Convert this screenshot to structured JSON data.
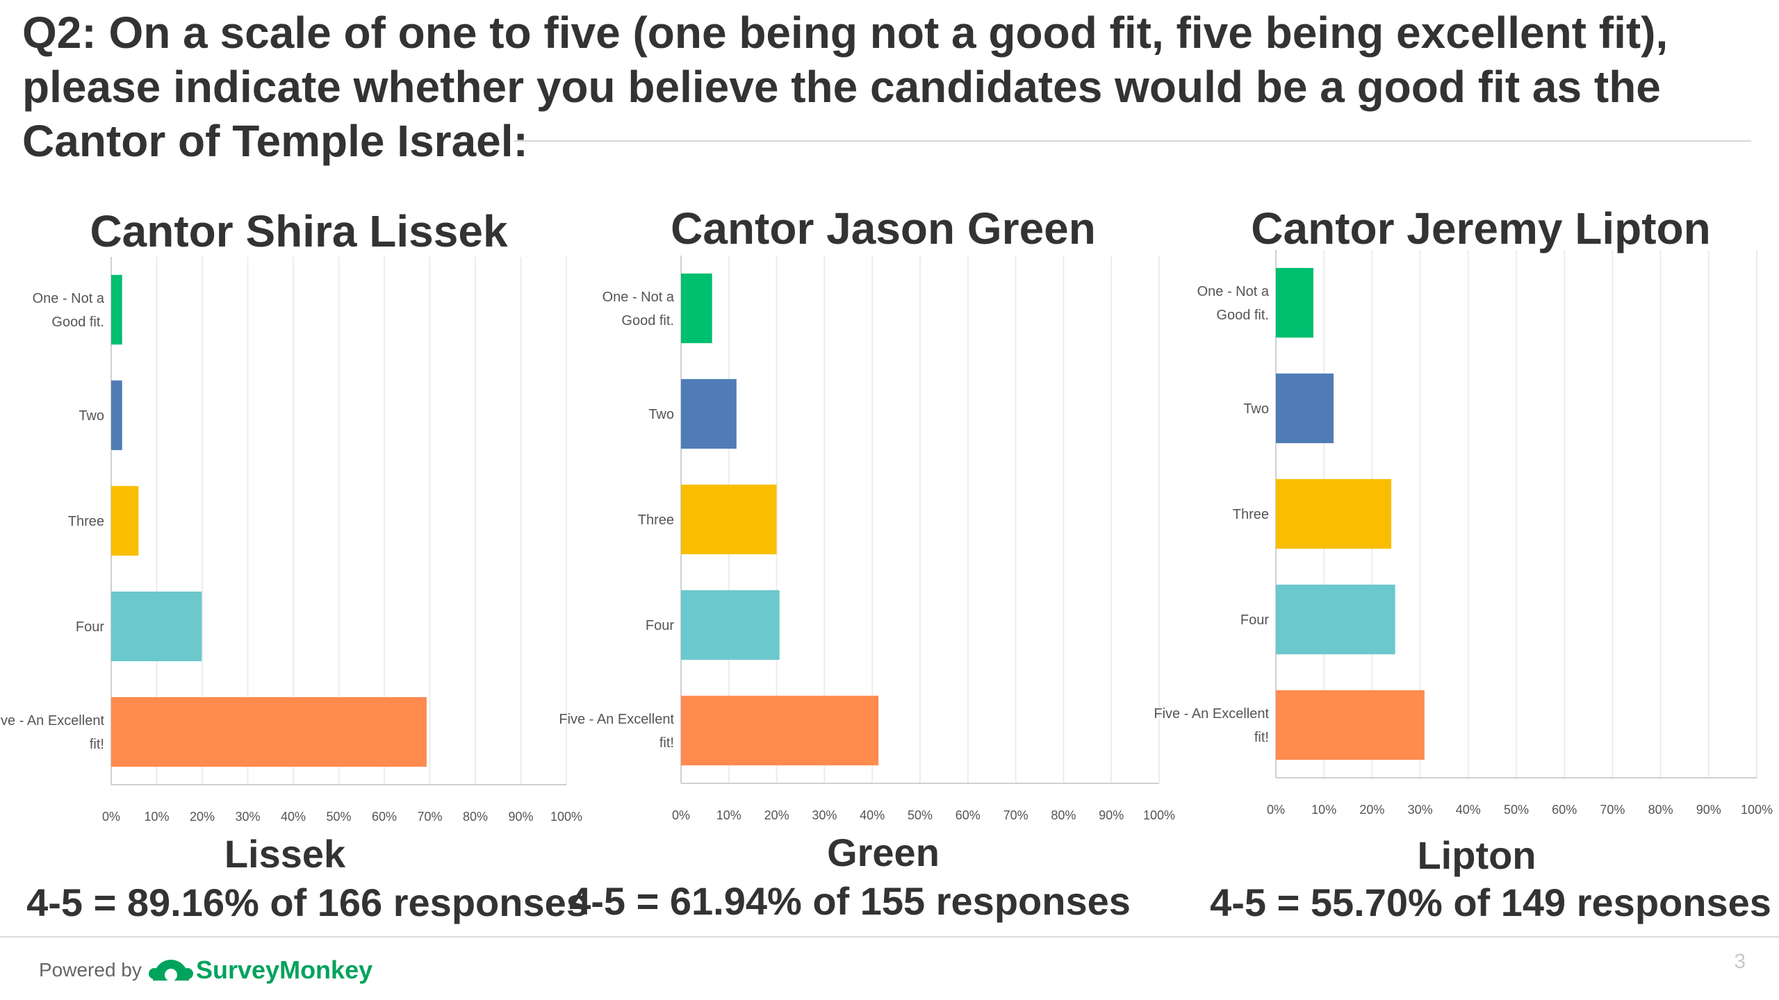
{
  "question": "Q2: On a scale of one to five (one being not a good fit, five being excellent fit), please indicate whether you believe the candidates would be a good fit as the Cantor of Temple Israel:",
  "colors": {
    "one": "#00bf6f",
    "two": "#507cb6",
    "three": "#f9be00",
    "four": "#6bc8cd",
    "five": "#ff8b4f"
  },
  "chart_data": [
    {
      "type": "bar",
      "orientation": "horizontal",
      "title": "Cantor Shira Lissek",
      "categories": [
        "One - Not a Good fit.",
        "Two",
        "Three",
        "Four",
        "Five - An Excellent fit!"
      ],
      "values": [
        2.4,
        2.4,
        6,
        19.9,
        69.3
      ],
      "xticks": [
        "0%",
        "10%",
        "20%",
        "30%",
        "40%",
        "50%",
        "60%",
        "70%",
        "80%",
        "90%",
        "100%"
      ],
      "xlim": [
        0,
        100
      ],
      "grid": true,
      "short_name": "Lissek",
      "summary": "4-5 = 89.16% of 166 responses"
    },
    {
      "type": "bar",
      "orientation": "horizontal",
      "title": "Cantor Jason Green",
      "categories": [
        "One - Not a Good fit.",
        "Two",
        "Three",
        "Four",
        "Five - An Excellent fit!"
      ],
      "values": [
        6.5,
        11.6,
        20,
        20.6,
        41.3
      ],
      "xticks": [
        "0%",
        "10%",
        "20%",
        "30%",
        "40%",
        "50%",
        "60%",
        "70%",
        "80%",
        "90%",
        "100%"
      ],
      "xlim": [
        0,
        100
      ],
      "grid": true,
      "short_name": "Green",
      "summary": "4-5 = 61.94% of 155 responses"
    },
    {
      "type": "bar",
      "orientation": "horizontal",
      "title": "Cantor Jeremy Lipton",
      "categories": [
        "One - Not a Good fit.",
        "Two",
        "Three",
        "Four",
        "Five - An Excellent fit!"
      ],
      "values": [
        7.8,
        12,
        24,
        24.8,
        30.9
      ],
      "xticks": [
        "0%",
        "10%",
        "20%",
        "30%",
        "40%",
        "50%",
        "60%",
        "70%",
        "80%",
        "90%",
        "100%"
      ],
      "xlim": [
        0,
        100
      ],
      "grid": true,
      "short_name": "Lipton",
      "summary": "4-5 = 55.70% of 149 responses"
    }
  ],
  "footer": {
    "powered_by": "Powered by",
    "brand": "SurveyMonkey",
    "page_number": "3"
  }
}
